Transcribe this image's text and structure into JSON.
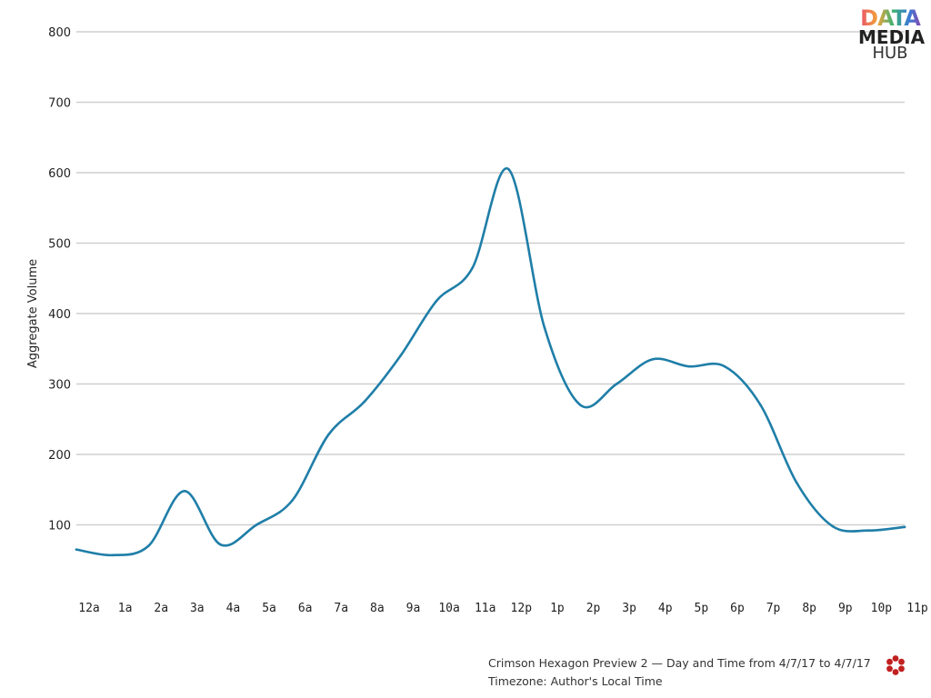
{
  "logo": {
    "line1": "DATA",
    "line2": "MEDIA",
    "line3": "HUB"
  },
  "footer": {
    "line1": "Crimson Hexagon Preview 2 — Day and Time from 4/7/17 to 4/7/17",
    "line2": "Timezone: Author's Local Time",
    "icon": "crimson-hexagon-flower-icon"
  },
  "colors": {
    "line": "#1f7ea8",
    "grid": "#cfcfcf",
    "brand_icon": "#c0201f"
  },
  "chart_data": {
    "type": "line",
    "title": "",
    "xlabel": "",
    "ylabel": "Aggregate Volume",
    "categories": [
      "12a",
      "1a",
      "2a",
      "3a",
      "4a",
      "5a",
      "6a",
      "7a",
      "8a",
      "9a",
      "10a",
      "11a",
      "12p",
      "1p",
      "2p",
      "3p",
      "4p",
      "5p",
      "6p",
      "7p",
      "8p",
      "9p",
      "10p",
      "11p"
    ],
    "series": [
      {
        "values": [
          65,
          57,
          70,
          148,
          72,
          100,
          135,
          228,
          275,
          340,
          418,
          465,
          605,
          380,
          270,
          300,
          335,
          325,
          325,
          270,
          160,
          98,
          92,
          97
        ]
      }
    ],
    "ylim": [
      0,
      800
    ],
    "yticks": [
      100,
      200,
      300,
      400,
      500,
      600,
      700,
      800
    ],
    "grid": true,
    "legend": "none"
  }
}
